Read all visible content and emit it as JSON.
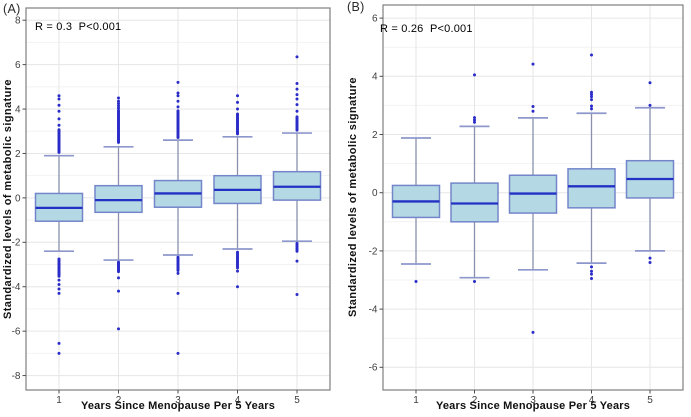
{
  "figure": {
    "background": "#ffffff"
  },
  "style": {
    "box_fill": "#b5d8e5",
    "box_border": "#7486ca",
    "median_color": "#2331c4",
    "whisker_color": "#8a90ad",
    "cap_color": "#8e97cc",
    "outlier_color": "#2a2cc8",
    "grid_major": "#e6e6e6",
    "grid_minor": "#f2f2f2",
    "panel_border": "#7f7f7f",
    "tick_color": "#4d4d4d",
    "tick_label_color": "#3d3d3d",
    "text_color": "#111111"
  },
  "chart_data": [
    {
      "type": "boxplot",
      "panel_label": "(A)",
      "annotation": "R = 0.3  P<0.001",
      "xlabel": "Years Since Menopause Per 5 Years",
      "ylabel": "Standardized levels of metabolic signature",
      "categories": [
        "1",
        "2",
        "3",
        "4",
        "5"
      ],
      "yticks": [
        -8,
        -6,
        -4,
        -2,
        0,
        2,
        4,
        6,
        8
      ],
      "ylim": [
        -8.65,
        8.55
      ],
      "grid": true,
      "legend": "none",
      "boxes": [
        {
          "category": "1",
          "whisker_low": -2.4,
          "q1": -1.05,
          "median": -0.45,
          "q3": 0.2,
          "whisker_high": 1.9,
          "outliers_high": [
            2.05,
            2.11,
            2.17,
            2.23,
            2.29,
            2.35,
            2.41,
            2.47,
            2.53,
            2.59,
            2.65,
            2.71,
            2.77,
            2.83,
            2.89,
            2.95,
            3.01,
            3.07,
            3.27,
            3.56,
            3.9,
            4.17,
            4.45,
            4.6
          ],
          "outliers_low": [
            -2.75,
            -2.81,
            -2.87,
            -2.93,
            -2.99,
            -3.05,
            -3.11,
            -3.17,
            -3.23,
            -3.29,
            -3.35,
            -3.41,
            -3.47,
            -3.53,
            -3.7,
            -3.9,
            -4.1,
            -4.3,
            -6.55,
            -7.0
          ]
        },
        {
          "category": "2",
          "whisker_low": -2.8,
          "q1": -0.65,
          "median": -0.1,
          "q3": 0.55,
          "whisker_high": 2.3,
          "outliers_high": [
            2.5,
            2.56,
            2.62,
            2.68,
            2.74,
            2.8,
            2.86,
            2.92,
            2.98,
            3.04,
            3.1,
            3.16,
            3.22,
            3.28,
            3.34,
            3.4,
            3.46,
            3.52,
            3.58,
            3.64,
            3.7,
            3.76,
            3.82,
            3.88,
            3.94,
            4.05,
            4.15,
            4.25,
            4.35,
            4.5
          ],
          "outliers_low": [
            -2.9,
            -2.96,
            -3.02,
            -3.08,
            -3.14,
            -3.2,
            -3.26,
            -3.32,
            -3.6,
            -4.2,
            -5.9
          ]
        },
        {
          "category": "3",
          "whisker_low": -2.57,
          "q1": -0.42,
          "median": 0.2,
          "q3": 0.78,
          "whisker_high": 2.6,
          "outliers_high": [
            2.72,
            2.78,
            2.84,
            2.9,
            2.96,
            3.02,
            3.08,
            3.14,
            3.2,
            3.26,
            3.32,
            3.38,
            3.44,
            3.5,
            3.56,
            3.62,
            3.68,
            3.74,
            3.8,
            3.86,
            3.92,
            4.1,
            4.35,
            4.6,
            4.72,
            5.2
          ],
          "outliers_low": [
            -2.67,
            -2.73,
            -2.79,
            -2.85,
            -2.91,
            -2.97,
            -3.03,
            -3.09,
            -3.15,
            -3.21,
            -3.27,
            -3.4,
            -4.3,
            -7.0
          ]
        },
        {
          "category": "4",
          "whisker_low": -2.3,
          "q1": -0.25,
          "median": 0.36,
          "q3": 1.0,
          "whisker_high": 2.75,
          "outliers_high": [
            2.88,
            2.94,
            3.0,
            3.06,
            3.12,
            3.18,
            3.24,
            3.3,
            3.36,
            3.42,
            3.48,
            3.54,
            3.6,
            3.66,
            3.72,
            3.78,
            4.0,
            4.3,
            4.6
          ],
          "outliers_low": [
            -2.45,
            -2.52,
            -2.59,
            -2.66,
            -2.73,
            -2.8,
            -2.87,
            -2.94,
            -3.01,
            -3.08,
            -3.15,
            -3.3,
            -4.0
          ]
        },
        {
          "category": "5",
          "whisker_low": -1.95,
          "q1": -0.1,
          "median": 0.5,
          "q3": 1.18,
          "whisker_high": 2.92,
          "outliers_high": [
            3.05,
            3.11,
            3.17,
            3.23,
            3.29,
            3.35,
            3.41,
            3.47,
            3.53,
            3.59,
            3.65,
            3.9,
            4.2,
            4.45,
            4.65,
            4.9,
            5.15,
            6.35
          ],
          "outliers_low": [
            -2.05,
            -2.12,
            -2.19,
            -2.26,
            -2.33,
            -2.4,
            -2.85,
            -4.35
          ]
        }
      ]
    },
    {
      "type": "boxplot",
      "panel_label": "(B)",
      "annotation": "R = 0.26  P<0.001",
      "xlabel": "Years Since Menopause Per 5 Years",
      "ylabel": "Standardized levels of metabolic signature",
      "categories": [
        "1",
        "2",
        "3",
        "4",
        "5"
      ],
      "yticks": [
        -6,
        -4,
        -2,
        0,
        2,
        4,
        6
      ],
      "ylim": [
        -6.78,
        6.45
      ],
      "grid": true,
      "legend": "none",
      "boxes": [
        {
          "category": "1",
          "whisker_low": -2.45,
          "q1": -0.85,
          "median": -0.3,
          "q3": 0.25,
          "whisker_high": 1.88,
          "outliers_high": [],
          "outliers_low": [
            -3.05
          ]
        },
        {
          "category": "2",
          "whisker_low": -2.92,
          "q1": -1.0,
          "median": -0.37,
          "q3": 0.33,
          "whisker_high": 2.28,
          "outliers_high": [
            2.42,
            2.5,
            2.58,
            4.05
          ],
          "outliers_low": [
            -3.05
          ]
        },
        {
          "category": "3",
          "whisker_low": -2.65,
          "q1": -0.7,
          "median": -0.03,
          "q3": 0.6,
          "whisker_high": 2.57,
          "outliers_high": [
            2.8,
            2.96,
            4.42
          ],
          "outliers_low": [
            -4.8
          ]
        },
        {
          "category": "4",
          "whisker_low": -2.42,
          "q1": -0.52,
          "median": 0.22,
          "q3": 0.82,
          "whisker_high": 2.73,
          "outliers_high": [
            2.88,
            2.98,
            3.2,
            3.3,
            3.38,
            3.45,
            4.73
          ],
          "outliers_low": [
            -2.55,
            -2.7,
            -2.8,
            -2.95
          ]
        },
        {
          "category": "5",
          "whisker_low": -2.0,
          "q1": -0.18,
          "median": 0.47,
          "q3": 1.1,
          "whisker_high": 2.92,
          "outliers_high": [
            3.0,
            3.78
          ],
          "outliers_low": [
            -2.25,
            -2.4
          ]
        }
      ]
    }
  ]
}
